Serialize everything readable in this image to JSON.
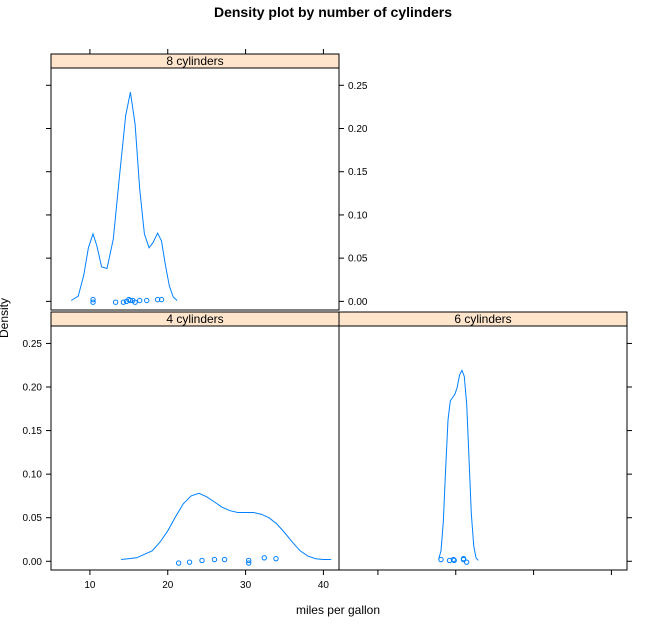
{
  "chart_data": {
    "type": "line",
    "title": "Density plot by number of cylinders",
    "xlabel": "miles per gallon",
    "ylabel": "Density",
    "xlim": [
      5,
      42
    ],
    "ylim": [
      -0.01,
      0.27
    ],
    "xticks": [
      "10",
      "20",
      "30",
      "40"
    ],
    "yticks": [
      "0.00",
      "0.05",
      "0.10",
      "0.15",
      "0.20",
      "0.25"
    ],
    "ytick_values": [
      0,
      0.05,
      0.1,
      0.15,
      0.2,
      0.25
    ],
    "xtick_values": [
      10,
      20,
      30,
      40
    ],
    "line_color": "#0080ff",
    "strip_color": "#ffe5cc",
    "panels": [
      {
        "label": "4 cylinders",
        "curve": [
          [
            14,
            0.002
          ],
          [
            16,
            0.004
          ],
          [
            18,
            0.012
          ],
          [
            19,
            0.022
          ],
          [
            20,
            0.035
          ],
          [
            21,
            0.051
          ],
          [
            22,
            0.066
          ],
          [
            23,
            0.075
          ],
          [
            24,
            0.078
          ],
          [
            25,
            0.074
          ],
          [
            26,
            0.068
          ],
          [
            27,
            0.062
          ],
          [
            28,
            0.058
          ],
          [
            29,
            0.056
          ],
          [
            30,
            0.056
          ],
          [
            31,
            0.056
          ],
          [
            32,
            0.054
          ],
          [
            33,
            0.05
          ],
          [
            34,
            0.043
          ],
          [
            35,
            0.033
          ],
          [
            36,
            0.022
          ],
          [
            37,
            0.012
          ],
          [
            38,
            0.006
          ],
          [
            39,
            0.003
          ],
          [
            40,
            0.002
          ],
          [
            41,
            0.002
          ]
        ],
        "points": [
          [
            21.4,
            -0.002
          ],
          [
            22.8,
            -0.001
          ],
          [
            24.4,
            0.001
          ],
          [
            26,
            0.002
          ],
          [
            27.3,
            0.002
          ],
          [
            30.4,
            0.001
          ],
          [
            30.4,
            -0.002
          ],
          [
            32.4,
            0.004
          ],
          [
            33.9,
            0.003
          ]
        ]
      },
      {
        "label": "6 cylinders",
        "curve": [
          [
            17.8,
            0.002
          ],
          [
            18.1,
            0.012
          ],
          [
            18.4,
            0.045
          ],
          [
            18.7,
            0.105
          ],
          [
            19.0,
            0.162
          ],
          [
            19.3,
            0.184
          ],
          [
            19.6,
            0.188
          ],
          [
            19.9,
            0.192
          ],
          [
            20.2,
            0.2
          ],
          [
            20.5,
            0.214
          ],
          [
            20.8,
            0.219
          ],
          [
            21.1,
            0.212
          ],
          [
            21.4,
            0.18
          ],
          [
            21.7,
            0.118
          ],
          [
            22.0,
            0.055
          ],
          [
            22.3,
            0.018
          ],
          [
            22.6,
            0.004
          ],
          [
            22.9,
            0.001
          ]
        ],
        "points": [
          [
            19.2,
            0.001
          ],
          [
            19.7,
            0.002
          ],
          [
            19.8,
            0.001
          ],
          [
            21.0,
            0.003
          ],
          [
            21.0,
            0.002
          ],
          [
            21.4,
            -0.001
          ],
          [
            18.1,
            0.002
          ]
        ]
      },
      {
        "label": "8 cylinders",
        "curve": [
          [
            7.6,
            0.001
          ],
          [
            8.5,
            0.006
          ],
          [
            9.2,
            0.03
          ],
          [
            9.8,
            0.062
          ],
          [
            10.4,
            0.078
          ],
          [
            10.9,
            0.064
          ],
          [
            11.5,
            0.04
          ],
          [
            12.2,
            0.038
          ],
          [
            13.0,
            0.072
          ],
          [
            13.8,
            0.145
          ],
          [
            14.6,
            0.215
          ],
          [
            15.2,
            0.242
          ],
          [
            15.8,
            0.205
          ],
          [
            16.4,
            0.13
          ],
          [
            17.0,
            0.078
          ],
          [
            17.6,
            0.062
          ],
          [
            18.1,
            0.068
          ],
          [
            18.7,
            0.079
          ],
          [
            19.2,
            0.07
          ],
          [
            19.7,
            0.042
          ],
          [
            20.2,
            0.018
          ],
          [
            20.7,
            0.005
          ],
          [
            21.2,
            0.001
          ]
        ],
        "points": [
          [
            10.4,
            0.002
          ],
          [
            10.4,
            -0.001
          ],
          [
            13.3,
            -0.001
          ],
          [
            14.3,
            -0.001
          ],
          [
            14.7,
            0.0
          ],
          [
            15.0,
            0.002
          ],
          [
            15.2,
            0.001
          ],
          [
            15.5,
            0.001
          ],
          [
            15.8,
            -0.001
          ],
          [
            16.4,
            0.001
          ],
          [
            17.3,
            0.001
          ],
          [
            18.7,
            0.002
          ],
          [
            19.2,
            0.002
          ]
        ]
      }
    ]
  }
}
